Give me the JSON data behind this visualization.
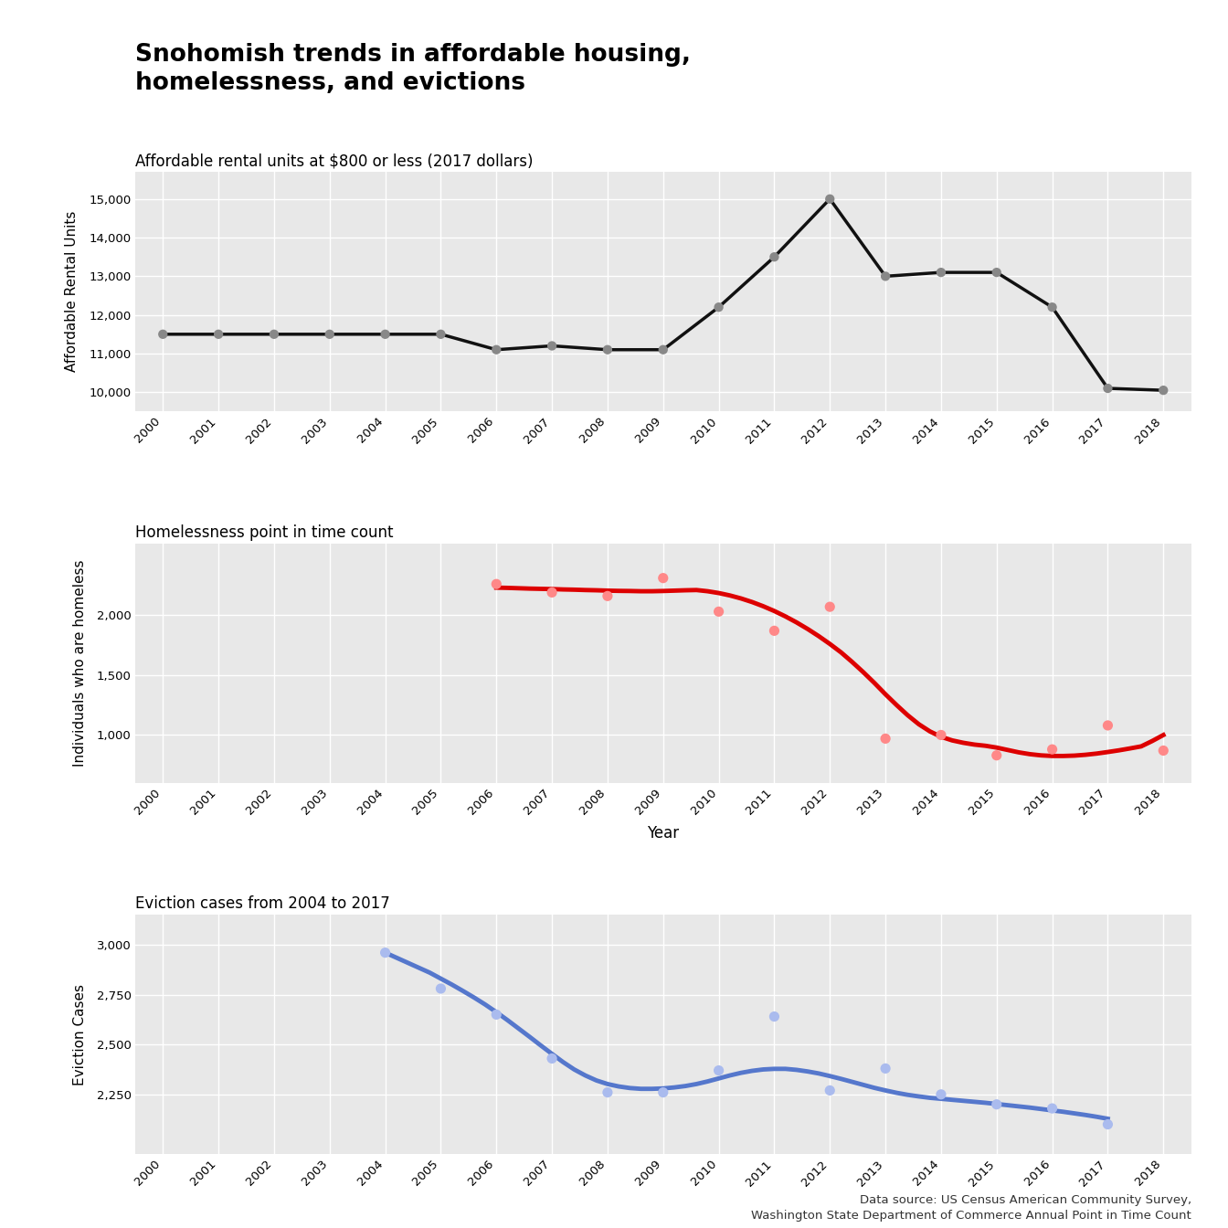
{
  "title": "Snohomish trends in affordable housing,\nhomelessness, and evictions",
  "subtitle1": "Affordable rental units at $800 or less (2017 dollars)",
  "subtitle2": "Homelessness point in time count",
  "subtitle3": "Eviction cases from 2004 to 2017",
  "xlabel": "Year",
  "ylabel1": "Affordable Rental Units",
  "ylabel2": "Individuals who are homeless",
  "ylabel3": "Eviction Cases",
  "datasource": "Data source: US Census American Community Survey,\nWashington State Department of Commerce Annual Point in Time Count",
  "background_color": "#e8e8e8",
  "grid_color": "#ffffff",
  "housing_years": [
    2000,
    2001,
    2002,
    2003,
    2004,
    2005,
    2006,
    2007,
    2008,
    2009,
    2010,
    2011,
    2012,
    2013,
    2014,
    2015,
    2016,
    2017,
    2018
  ],
  "housing_values": [
    11500,
    11500,
    11500,
    11500,
    11500,
    11500,
    11100,
    11200,
    11100,
    11100,
    12200,
    13500,
    15000,
    13000,
    13100,
    13100,
    12200,
    10100,
    10050
  ],
  "homeless_scatter_years": [
    2006,
    2007,
    2008,
    2009,
    2010,
    2011,
    2012,
    2013,
    2014,
    2015,
    2016,
    2017,
    2018
  ],
  "homeless_scatter_values": [
    2260,
    2190,
    2160,
    2310,
    2030,
    1870,
    2070,
    970,
    1000,
    830,
    880,
    1080,
    870
  ],
  "homeless_smooth_years": [
    2006.0,
    2006.2,
    2006.4,
    2006.6,
    2006.8,
    2007.0,
    2007.2,
    2007.4,
    2007.6,
    2007.8,
    2008.0,
    2008.2,
    2008.4,
    2008.6,
    2008.8,
    2009.0,
    2009.2,
    2009.4,
    2009.6,
    2009.8,
    2010.0,
    2010.2,
    2010.4,
    2010.6,
    2010.8,
    2011.0,
    2011.2,
    2011.4,
    2011.6,
    2011.8,
    2012.0,
    2012.2,
    2012.4,
    2012.6,
    2012.8,
    2013.0,
    2013.2,
    2013.4,
    2013.6,
    2013.8,
    2014.0,
    2014.2,
    2014.4,
    2014.6,
    2014.8,
    2015.0,
    2015.2,
    2015.4,
    2015.6,
    2015.8,
    2016.0,
    2016.2,
    2016.4,
    2016.6,
    2016.8,
    2017.0,
    2017.2,
    2017.4,
    2017.6,
    2017.8,
    2018.0
  ],
  "homeless_smooth_values": [
    2230,
    2228,
    2225,
    2222,
    2220,
    2218,
    2215,
    2213,
    2210,
    2208,
    2205,
    2203,
    2202,
    2200,
    2200,
    2202,
    2205,
    2208,
    2210,
    2200,
    2185,
    2165,
    2140,
    2110,
    2075,
    2035,
    1990,
    1940,
    1885,
    1825,
    1760,
    1690,
    1610,
    1525,
    1435,
    1340,
    1250,
    1165,
    1090,
    1030,
    985,
    955,
    935,
    920,
    910,
    895,
    875,
    855,
    840,
    830,
    825,
    825,
    828,
    835,
    845,
    858,
    872,
    888,
    905,
    950,
    1000
  ],
  "eviction_scatter_years": [
    2004,
    2005,
    2006,
    2007,
    2008,
    2009,
    2010,
    2011,
    2012,
    2013,
    2014,
    2015,
    2016,
    2017
  ],
  "eviction_scatter_values": [
    2960,
    2780,
    2650,
    2430,
    2260,
    2260,
    2370,
    2640,
    2270,
    2380,
    2250,
    2200,
    2180,
    2100
  ],
  "eviction_smooth_years": [
    2004.0,
    2004.2,
    2004.4,
    2004.6,
    2004.8,
    2005.0,
    2005.2,
    2005.4,
    2005.6,
    2005.8,
    2006.0,
    2006.2,
    2006.4,
    2006.6,
    2006.8,
    2007.0,
    2007.2,
    2007.4,
    2007.6,
    2007.8,
    2008.0,
    2008.2,
    2008.4,
    2008.6,
    2008.8,
    2009.0,
    2009.2,
    2009.4,
    2009.6,
    2009.8,
    2010.0,
    2010.2,
    2010.4,
    2010.6,
    2010.8,
    2011.0,
    2011.2,
    2011.4,
    2011.6,
    2011.8,
    2012.0,
    2012.2,
    2012.4,
    2012.6,
    2012.8,
    2013.0,
    2013.2,
    2013.4,
    2013.6,
    2013.8,
    2014.0,
    2014.2,
    2014.4,
    2014.6,
    2014.8,
    2015.0,
    2015.2,
    2015.4,
    2015.6,
    2015.8,
    2016.0,
    2016.2,
    2016.4,
    2016.6,
    2016.8,
    2017.0
  ],
  "eviction_smooth_values": [
    2960,
    2935,
    2910,
    2885,
    2860,
    2830,
    2800,
    2768,
    2735,
    2700,
    2662,
    2622,
    2580,
    2538,
    2495,
    2453,
    2412,
    2375,
    2345,
    2320,
    2302,
    2290,
    2282,
    2278,
    2278,
    2280,
    2285,
    2292,
    2302,
    2315,
    2330,
    2345,
    2358,
    2368,
    2375,
    2378,
    2378,
    2373,
    2365,
    2355,
    2342,
    2328,
    2313,
    2298,
    2283,
    2270,
    2258,
    2248,
    2240,
    2233,
    2228,
    2223,
    2218,
    2213,
    2208,
    2202,
    2196,
    2190,
    2184,
    2177,
    2170,
    2163,
    2155,
    2147,
    2138,
    2128
  ],
  "housing_line_color": "#111111",
  "housing_dot_color": "#888888",
  "homeless_line_color": "#dd0000",
  "homeless_dot_color": "#ff8888",
  "eviction_line_color": "#5577cc",
  "eviction_dot_color": "#aabbee"
}
